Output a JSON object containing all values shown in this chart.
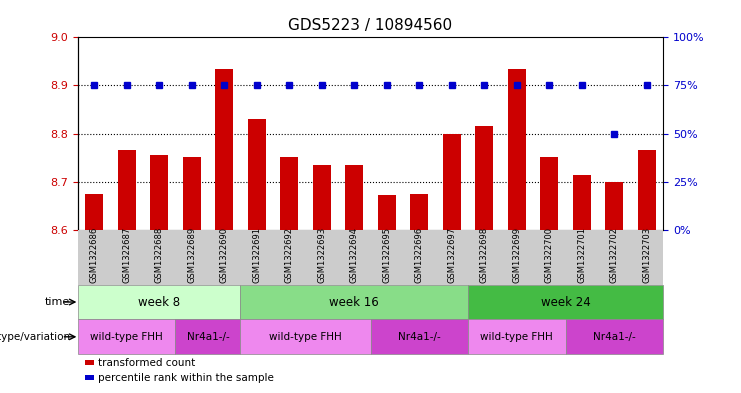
{
  "title": "GDS5223 / 10894560",
  "samples": [
    "GSM1322686",
    "GSM1322687",
    "GSM1322688",
    "GSM1322689",
    "GSM1322690",
    "GSM1322691",
    "GSM1322692",
    "GSM1322693",
    "GSM1322694",
    "GSM1322695",
    "GSM1322696",
    "GSM1322697",
    "GSM1322698",
    "GSM1322699",
    "GSM1322700",
    "GSM1322701",
    "GSM1322702",
    "GSM1322703"
  ],
  "bar_values": [
    8.675,
    8.765,
    8.755,
    8.752,
    8.935,
    8.83,
    8.752,
    8.735,
    8.735,
    8.672,
    8.675,
    8.8,
    8.815,
    8.935,
    8.752,
    8.715,
    8.7,
    8.765
  ],
  "percentile_values": [
    75,
    75,
    75,
    75,
    75,
    75,
    75,
    75,
    75,
    75,
    75,
    75,
    75,
    75,
    75,
    75,
    50,
    75
  ],
  "ylim_left": [
    8.6,
    9.0
  ],
  "ylim_right": [
    0,
    100
  ],
  "yticks_left": [
    8.6,
    8.7,
    8.8,
    8.9,
    9.0
  ],
  "yticks_right": [
    0,
    25,
    50,
    75,
    100
  ],
  "bar_color": "#cc0000",
  "dot_color": "#0000cc",
  "time_groups": [
    {
      "label": "week 8",
      "start": 0,
      "end": 5,
      "color": "#ccffcc"
    },
    {
      "label": "week 16",
      "start": 5,
      "end": 12,
      "color": "#88dd88"
    },
    {
      "label": "week 24",
      "start": 12,
      "end": 18,
      "color": "#44bb44"
    }
  ],
  "genotype_groups": [
    {
      "label": "wild-type FHH",
      "start": 0,
      "end": 3,
      "color": "#ee88ee"
    },
    {
      "label": "Nr4a1-/-",
      "start": 3,
      "end": 5,
      "color": "#cc44cc"
    },
    {
      "label": "wild-type FHH",
      "start": 5,
      "end": 9,
      "color": "#ee88ee"
    },
    {
      "label": "Nr4a1-/-",
      "start": 9,
      "end": 12,
      "color": "#cc44cc"
    },
    {
      "label": "wild-type FHH",
      "start": 12,
      "end": 15,
      "color": "#ee88ee"
    },
    {
      "label": "Nr4a1-/-",
      "start": 15,
      "end": 18,
      "color": "#cc44cc"
    }
  ],
  "legend_items": [
    {
      "label": "transformed count",
      "color": "#cc0000"
    },
    {
      "label": "percentile rank within the sample",
      "color": "#0000cc"
    }
  ],
  "xlabel_time": "time",
  "xlabel_genotype": "genotype/variation",
  "bg_color": "#ffffff",
  "tick_color_left": "#cc0000",
  "tick_color_right": "#0000cc",
  "sample_bg_color": "#cccccc",
  "title_fontsize": 11,
  "bar_width": 0.55
}
